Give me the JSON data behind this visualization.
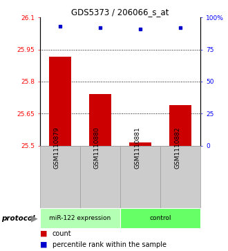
{
  "title": "GDS5373 / 206066_s_at",
  "samples": [
    "GSM1110879",
    "GSM1110880",
    "GSM1110881",
    "GSM1110882"
  ],
  "bar_values": [
    25.915,
    25.74,
    25.515,
    25.69
  ],
  "dot_values": [
    93,
    92,
    91,
    92
  ],
  "ylim_left": [
    25.5,
    26.1
  ],
  "ylim_right": [
    0,
    100
  ],
  "yticks_left": [
    25.5,
    25.65,
    25.8,
    25.95,
    26.1
  ],
  "yticks_right": [
    0,
    25,
    50,
    75,
    100
  ],
  "ytick_labels_left": [
    "25.5",
    "25.65",
    "25.8",
    "25.95",
    "26.1"
  ],
  "ytick_labels_right": [
    "0",
    "25",
    "50",
    "75",
    "100%"
  ],
  "hlines": [
    25.65,
    25.8,
    25.95
  ],
  "bar_color": "#cc0000",
  "dot_color": "#0000cc",
  "protocol_label": "protocol",
  "legend_count": "count",
  "legend_percentile": "percentile rank within the sample",
  "bar_width": 0.55,
  "group_color_mir": "#b3ffb3",
  "group_color_ctrl": "#66ff66",
  "group_color_mir_dark": "#99ee99",
  "group_color_ctrl_dark": "#44dd44"
}
